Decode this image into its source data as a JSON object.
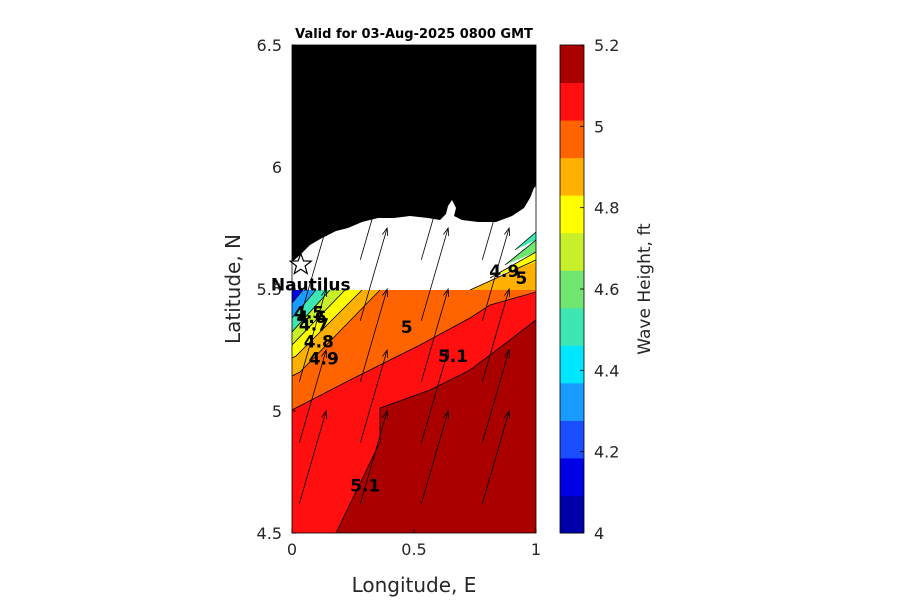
{
  "chart_data": {
    "type": "contour",
    "title": "Valid for 03-Aug-2025 0800 GMT",
    "xlabel": "Longitude, E",
    "ylabel": "Latitude, N",
    "xlim": [
      0,
      1
    ],
    "ylim": [
      4.5,
      6.5
    ],
    "x_ticks": [
      0,
      0.5,
      1
    ],
    "x_tick_labels": [
      "0",
      "0.5",
      "1"
    ],
    "y_ticks": [
      4.5,
      5,
      5.5,
      6,
      6.5
    ],
    "y_tick_labels": [
      "4.5",
      "5",
      "5.5",
      "6",
      "6.5"
    ],
    "grid": false,
    "land_color": "#000000",
    "colorbar": {
      "label": "Wave Height, ft",
      "position": "right",
      "range": [
        4,
        5.2
      ],
      "step": 0.1,
      "ticks": [
        4,
        4.2,
        4.4,
        4.6,
        4.8,
        5,
        5.2
      ],
      "tick_labels": [
        "4",
        "4.2",
        "4.4",
        "4.6",
        "4.8",
        "5",
        "5.2"
      ],
      "colors": [
        "#0000aa",
        "#0000e6",
        "#1a4dff",
        "#1a9bff",
        "#00e6ff",
        "#3ee6b4",
        "#6fe66f",
        "#c8f02a",
        "#ffff00",
        "#ffb000",
        "#ff6400",
        "#ff0f0f",
        "#aa0000"
      ]
    },
    "station": {
      "name": "Nautilus",
      "lon": 0.04,
      "lat": 5.6
    },
    "contour_labels": [
      {
        "text": "4.5",
        "lon": 0.07,
        "lat": 5.38
      },
      {
        "text": "4.6",
        "lon": 0.08,
        "lat": 5.36
      },
      {
        "text": "4.7",
        "lon": 0.09,
        "lat": 5.33
      },
      {
        "text": "4.8",
        "lon": 0.11,
        "lat": 5.26
      },
      {
        "text": "4.9",
        "lon": 0.13,
        "lat": 5.19
      },
      {
        "text": "5",
        "lon": 0.47,
        "lat": 5.32
      },
      {
        "text": "5.1",
        "lon": 0.66,
        "lat": 5.2
      },
      {
        "text": "5.1",
        "lon": 0.3,
        "lat": 4.67
      },
      {
        "text": "4.9",
        "lon": 0.87,
        "lat": 5.55
      },
      {
        "text": "5",
        "lon": 0.94,
        "lat": 5.52
      }
    ],
    "wind_vectors": {
      "lons": [
        0.03,
        0.28,
        0.53,
        0.78
      ],
      "lats": [
        4.62,
        4.87,
        5.12,
        5.37,
        5.62
      ],
      "u": 0.11,
      "v": 0.38
    }
  }
}
